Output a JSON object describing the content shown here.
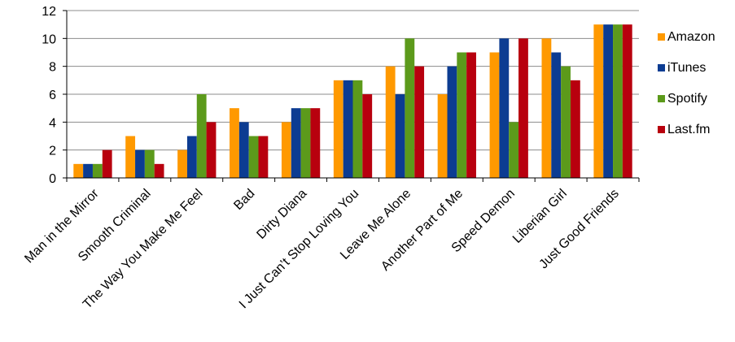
{
  "chart_data": {
    "type": "bar",
    "categories": [
      "Man in the Mirror",
      "Smooth Criminal",
      "The Way You Make Me Feel",
      "Bad",
      "Dirty Diana",
      "I Just Can’t Stop Loving You",
      "Leave Me Alone",
      "Another Part of Me",
      "Speed Demon",
      "Liberian Girl",
      "Just Good Friends"
    ],
    "series": [
      {
        "name": "Amazon",
        "color": "#FF9900",
        "values": [
          1,
          3,
          2,
          5,
          4,
          7,
          8,
          6,
          9,
          10,
          11
        ]
      },
      {
        "name": "iTunes",
        "color": "#0C3C92",
        "values": [
          1,
          2,
          3,
          4,
          5,
          7,
          6,
          8,
          10,
          9,
          11
        ]
      },
      {
        "name": "Spotify",
        "color": "#5C9A1B",
        "values": [
          1,
          2,
          6,
          3,
          5,
          7,
          10,
          9,
          4,
          8,
          11
        ]
      },
      {
        "name": "Last.fm",
        "color": "#B8000E",
        "values": [
          2,
          1,
          4,
          3,
          5,
          6,
          8,
          9,
          10,
          7,
          11
        ]
      }
    ],
    "ylim": [
      0,
      12
    ],
    "yticks": [
      "0",
      "2",
      "4",
      "6",
      "8",
      "10",
      "12"
    ],
    "grid": "horizontal",
    "legend": "right",
    "title": "",
    "xlabel": "",
    "ylabel": ""
  }
}
